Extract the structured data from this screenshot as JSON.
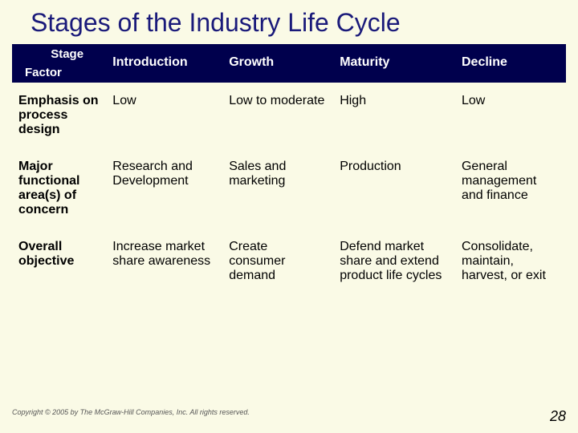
{
  "title": "Stages of the Industry Life Cycle",
  "header": {
    "corner_stage": "Stage",
    "corner_factor": "Factor",
    "cols": [
      "Introduction",
      "Growth",
      "Maturity",
      "Decline"
    ]
  },
  "rows": [
    {
      "factor": "Emphasis on process design",
      "cells": [
        "Low",
        "Low to moderate",
        "High",
        "Low"
      ]
    },
    {
      "factor": "Major functional area(s) of concern",
      "cells": [
        "Research and Development",
        "Sales and marketing",
        "Production",
        "General management and finance"
      ]
    },
    {
      "factor": "Overall objective",
      "cells": [
        "Increase market share awareness",
        "Create consumer demand",
        "Defend market share and extend product life cycles",
        "Consolidate, maintain, harvest, or exit"
      ]
    }
  ],
  "footer": {
    "copyright": "Copyright © 2005 by The McGraw-Hill Companies, Inc.  All rights reserved.",
    "page": "28"
  },
  "colors": {
    "background": "#fafae6",
    "header_bg": "#00004d",
    "title_color": "#1a1a7a"
  }
}
